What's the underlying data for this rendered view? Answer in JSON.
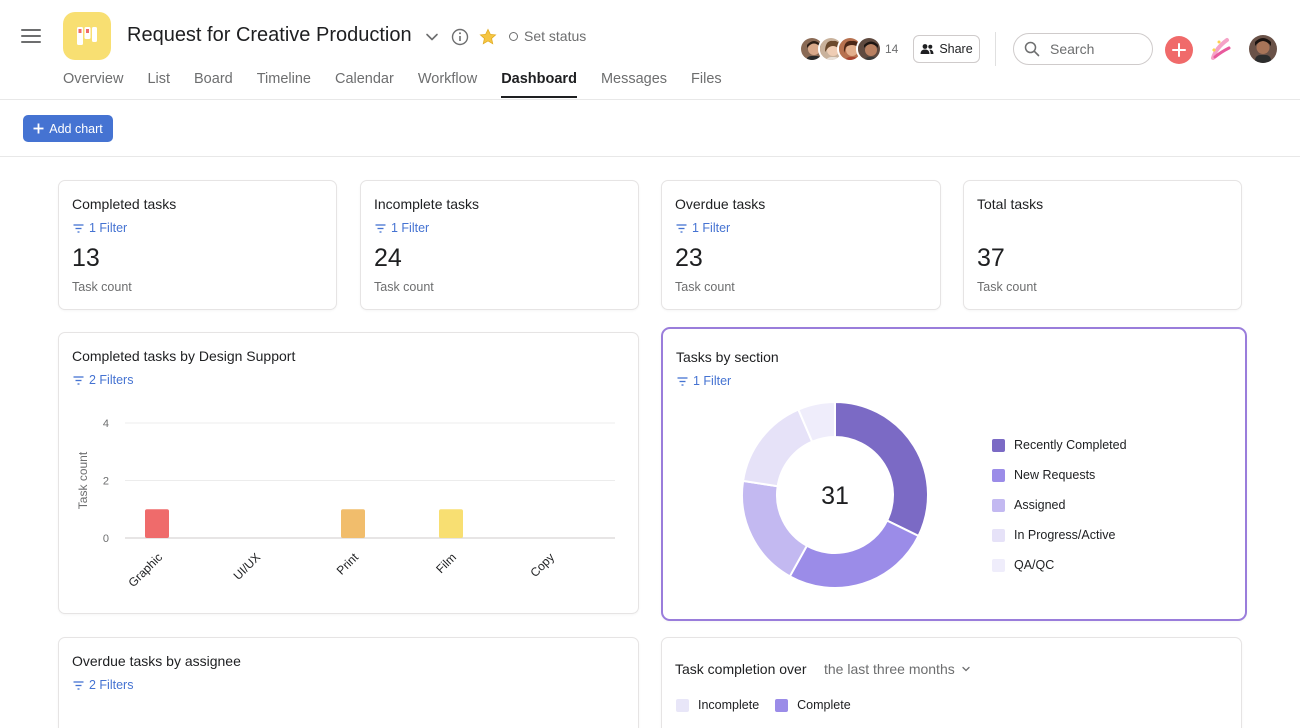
{
  "project": {
    "title": "Request for Creative Production",
    "set_status": "Set status"
  },
  "tabs": [
    "Overview",
    "List",
    "Board",
    "Timeline",
    "Calendar",
    "Workflow",
    "Dashboard",
    "Messages",
    "Files"
  ],
  "active_tab": "Dashboard",
  "members": {
    "count": "14"
  },
  "share_label": "Share",
  "search": {
    "placeholder": "Search"
  },
  "toolbar": {
    "add_chart_label": "Add chart"
  },
  "icons": {
    "menu": "hamburger-icon",
    "dropdown": "chevron-down-icon",
    "info": "info-icon",
    "favorite": "star-icon",
    "status": "circle-icon",
    "share": "people-icon",
    "search": "search-icon",
    "create": "plus-icon",
    "ai": "ai-sparkle-icon",
    "filter": "filter-icon"
  },
  "colors": {
    "accent": "#4573d2",
    "create": "#f06a6a",
    "project_icon": "#f8df72",
    "selected_border": "#9a7ddb"
  },
  "stats": [
    {
      "title": "Completed tasks",
      "filter": "1 Filter",
      "value": "13",
      "label": "Task count"
    },
    {
      "title": "Incomplete tasks",
      "filter": "1 Filter",
      "value": "24",
      "label": "Task count"
    },
    {
      "title": "Overdue tasks",
      "filter": "1 Filter",
      "value": "23",
      "label": "Task count"
    },
    {
      "title": "Total tasks",
      "filter": "",
      "value": "37",
      "label": "Task count"
    }
  ],
  "bar_card": {
    "title": "Completed tasks by Design Support",
    "filter": "2 Filters"
  },
  "donut_card": {
    "title": "Tasks by section",
    "filter": "1 Filter",
    "center": "31"
  },
  "assignee_card": {
    "title": "Overdue tasks by assignee",
    "filter": "2 Filters"
  },
  "completion_card": {
    "title": "Task completion over",
    "range": "the last three months",
    "legend": [
      {
        "label": "Incomplete",
        "color": "#e8e6f8"
      },
      {
        "label": "Complete",
        "color": "#9b8ce8"
      }
    ]
  },
  "chart_data": [
    {
      "type": "bar",
      "categories": [
        "Graphic",
        "UI/UX",
        "Print",
        "Film",
        "Copy"
      ],
      "values": [
        1,
        0,
        1,
        1,
        0
      ],
      "colors": [
        "#ef6b6b",
        "#cccccc",
        "#f1bd6c",
        "#f8df72",
        "#cccccc"
      ],
      "ylabel": "Task count",
      "ylim": [
        0,
        4
      ],
      "yticks": [
        0,
        2,
        4
      ],
      "grid": true
    },
    {
      "type": "pie",
      "categories": [
        "Recently Completed",
        "New Requests",
        "Assigned",
        "In Progress/Active",
        "QA/QC"
      ],
      "values": [
        10,
        8,
        6,
        5,
        2
      ],
      "colors": [
        "#7b6ac5",
        "#9b8ce8",
        "#c3b9f1",
        "#e6e2f8",
        "#efedfb"
      ],
      "total": 31,
      "legend": "right"
    }
  ]
}
